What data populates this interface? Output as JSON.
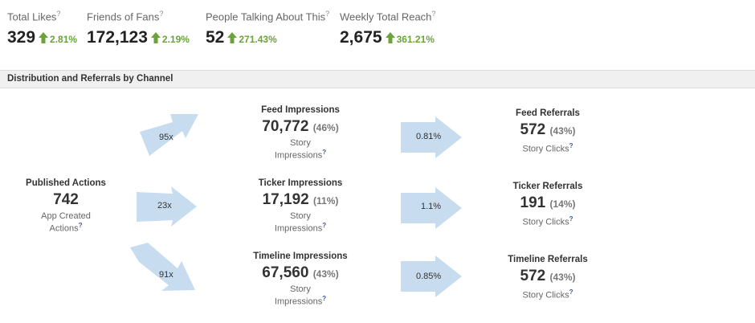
{
  "stats": [
    {
      "label": "Total Likes",
      "value": "329",
      "pct": "2.81%"
    },
    {
      "label": "Friends of Fans",
      "value": "172,123",
      "pct": "2.19%"
    },
    {
      "label": "People Talking About This",
      "value": "52",
      "pct": "271.43%"
    },
    {
      "label": "Weekly Total Reach",
      "value": "2,675",
      "pct": "361.21%"
    }
  ],
  "help_mark": "?",
  "section_title": "Distribution and Referrals by Channel",
  "published": {
    "title": "Published Actions",
    "value": "742",
    "sub_line1": "App Created",
    "sub_line2": "Actions"
  },
  "impressions": [
    {
      "title": "Feed Impressions",
      "value": "70,772",
      "pct": "(46%)",
      "sub_line1": "Story",
      "sub_line2": "Impressions"
    },
    {
      "title": "Ticker Impressions",
      "value": "17,192",
      "pct": "(11%)",
      "sub_line1": "Story",
      "sub_line2": "Impressions"
    },
    {
      "title": "Timeline Impressions",
      "value": "67,560",
      "pct": "(43%)",
      "sub_line1": "Story",
      "sub_line2": "Impressions"
    }
  ],
  "referrals": [
    {
      "title": "Feed Referrals",
      "value": "572",
      "pct": "(43%)",
      "sub": "Story Clicks"
    },
    {
      "title": "Ticker Referrals",
      "value": "191",
      "pct": "(14%)",
      "sub": "Story Clicks"
    },
    {
      "title": "Timeline Referrals",
      "value": "572",
      "pct": "(43%)",
      "sub": "Story Clicks"
    }
  ],
  "multipliers": [
    "95x",
    "23x",
    "91x"
  ],
  "ctr": [
    "0.81%",
    "1.1%",
    "0.85%"
  ],
  "colors": {
    "arrow_fill": "#c8dcf0",
    "positive": "#6aa33b",
    "help": "#3b5998"
  }
}
